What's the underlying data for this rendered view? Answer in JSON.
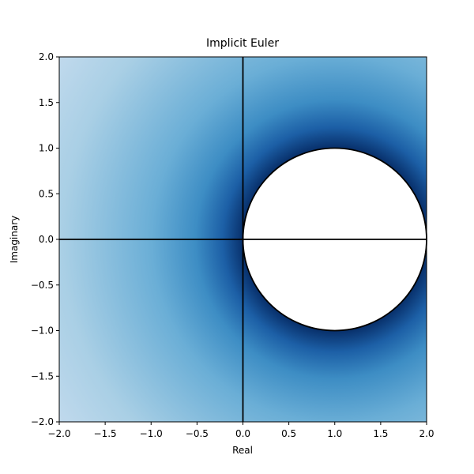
{
  "chart_data": {
    "type": "contour",
    "title": "Implicit Euler",
    "x_label": "Real",
    "y_label": "Imaginary",
    "xlim": [
      -2,
      2
    ],
    "ylim": [
      -2,
      2
    ],
    "xticks": [
      {
        "value": -2,
        "label": "−2.0"
      },
      {
        "value": -1.5,
        "label": "−1.5"
      },
      {
        "value": -1,
        "label": "−1.0"
      },
      {
        "value": -0.5,
        "label": "−0.5"
      },
      {
        "value": 0,
        "label": "0.0"
      },
      {
        "value": 0.5,
        "label": "0.5"
      },
      {
        "value": 1,
        "label": "1.0"
      },
      {
        "value": 1.5,
        "label": "1.5"
      },
      {
        "value": 2,
        "label": "2.0"
      }
    ],
    "yticks": [
      {
        "value": -2,
        "label": "−2.0"
      },
      {
        "value": -1.5,
        "label": "−1.5"
      },
      {
        "value": -1,
        "label": "−1.0"
      },
      {
        "value": -0.5,
        "label": "−0.5"
      },
      {
        "value": 0,
        "label": "0.0"
      },
      {
        "value": 0.5,
        "label": "0.5"
      },
      {
        "value": 1,
        "label": "1.0"
      },
      {
        "value": 1.5,
        "label": "1.5"
      },
      {
        "value": 2,
        "label": "2.0"
      }
    ],
    "stability_boundary": {
      "center": [
        1,
        0
      ],
      "radius": 1
    }
  }
}
